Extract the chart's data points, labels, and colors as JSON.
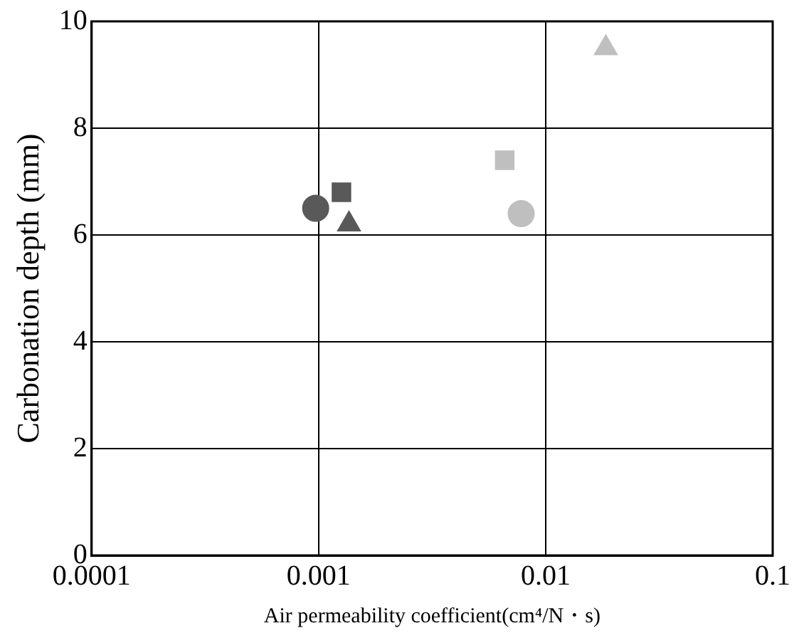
{
  "chart_data": {
    "type": "scatter",
    "xlabel": "Air permeability coefficient(cm⁴/N・s)",
    "ylabel": "Carbonation depth (mm)",
    "log": "x",
    "xlim": [
      0.0001,
      0.1
    ],
    "xticks": [
      0.0001,
      0.001,
      0.01,
      0.1
    ],
    "ylim": [
      0,
      10
    ],
    "yticks": [
      0,
      2,
      4,
      6,
      8,
      10
    ],
    "grid": true,
    "legend": false,
    "series": [
      {
        "color": "#595959",
        "marker": "circle",
        "x": [
          0.00097
        ],
        "values": [
          6.5
        ]
      },
      {
        "color": "#595959",
        "marker": "square",
        "x": [
          0.00126
        ],
        "values": [
          6.8
        ]
      },
      {
        "color": "#595959",
        "marker": "triangle",
        "x": [
          0.00136
        ],
        "values": [
          6.2
        ]
      },
      {
        "color": "#bfbfbf",
        "marker": "square",
        "x": [
          0.0066
        ],
        "values": [
          7.4
        ]
      },
      {
        "color": "#bfbfbf",
        "marker": "circle",
        "x": [
          0.0078
        ],
        "values": [
          6.4
        ]
      },
      {
        "color": "#bfbfbf",
        "marker": "triangle",
        "x": [
          0.0184
        ],
        "values": [
          9.5
        ]
      }
    ]
  }
}
